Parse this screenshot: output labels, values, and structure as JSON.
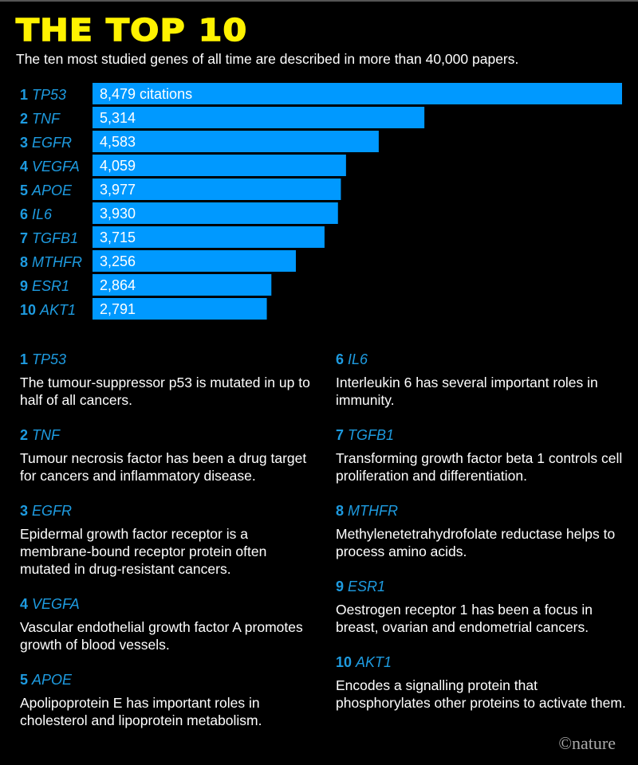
{
  "title": "THE TOP 10",
  "subtitle": "The ten most studied genes of all time are described in more than 40,000 papers.",
  "colors": {
    "bar": "#0099ff",
    "accent": "#1e9be0",
    "title": "#fff200",
    "background": "#000000"
  },
  "chart_data": {
    "type": "bar",
    "orientation": "horizontal",
    "ranks": [
      "1",
      "2",
      "3",
      "4",
      "5",
      "6",
      "7",
      "8",
      "9",
      "10"
    ],
    "categories": [
      "TP53",
      "TNF",
      "EGFR",
      "VEGFA",
      "APOE",
      "IL6",
      "TGFB1",
      "MTHFR",
      "ESR1",
      "AKT1"
    ],
    "values": [
      8479,
      5314,
      4583,
      4059,
      3977,
      3930,
      3715,
      3256,
      2864,
      2791
    ],
    "value_labels": [
      "8,479 citations",
      "5,314",
      "4,583",
      "4,059",
      "3,977",
      "3,930",
      "3,715",
      "3,256",
      "2,864",
      "2,791"
    ],
    "xlabel": "",
    "ylabel": ""
  },
  "descriptions": [
    {
      "rank": "1",
      "gene": "TP53",
      "text": "The tumour-suppressor p53 is mutated in up to half of all cancers."
    },
    {
      "rank": "2",
      "gene": "TNF",
      "text": "Tumour necrosis factor has been a drug target for cancers and inflammatory disease."
    },
    {
      "rank": "3",
      "gene": "EGFR",
      "text": "Epidermal growth factor receptor is a membrane-bound receptor protein often mutated in drug-resistant cancers."
    },
    {
      "rank": "4",
      "gene": "VEGFA",
      "text": "Vascular endothelial growth factor A promotes growth of blood vessels."
    },
    {
      "rank": "5",
      "gene": "APOE",
      "text": "Apolipoprotein E has important roles in cholesterol and lipoprotein metabolism."
    },
    {
      "rank": "6",
      "gene": "IL6",
      "text": "Interleukin 6 has several important roles in immunity."
    },
    {
      "rank": "7",
      "gene": "TGFB1",
      "text": "Transforming growth factor beta 1 controls cell proliferation and differentiation."
    },
    {
      "rank": "8",
      "gene": "MTHFR",
      "text": "Methylenetetrahydrofolate reductase helps to process amino acids."
    },
    {
      "rank": "9",
      "gene": "ESR1",
      "text": "Oestrogen receptor 1 has been a focus in breast, ovarian and endometrial cancers."
    },
    {
      "rank": "10",
      "gene": "AKT1",
      "text": "Encodes a signalling protein that phosphorylates other proteins to activate them."
    }
  ],
  "credit": "©nature"
}
